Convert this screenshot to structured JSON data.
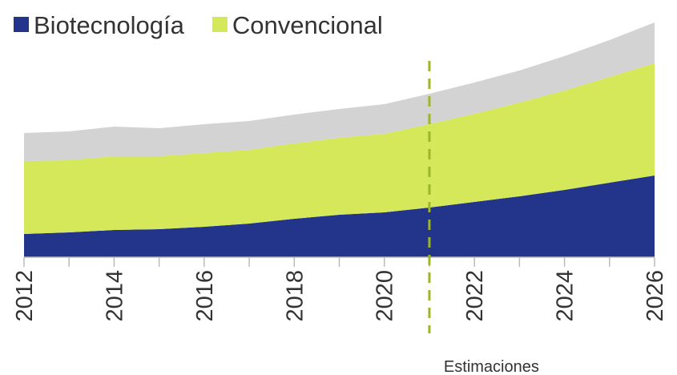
{
  "chart_data": {
    "type": "stacked-area",
    "x": [
      2012,
      2013,
      2014,
      2015,
      2016,
      2017,
      2018,
      2019,
      2020,
      2021,
      2022,
      2023,
      2024,
      2025,
      2026
    ],
    "series": [
      {
        "name": "Biotecnología",
        "color": "#22358a",
        "values": [
          29,
          31,
          34,
          35,
          38,
          42,
          48,
          53,
          56,
          62,
          69,
          76,
          84,
          93,
          102
        ]
      },
      {
        "name": "Convencional",
        "color": "#d4e85a",
        "values": [
          91,
          90,
          92,
          91,
          92,
          92,
          94,
          96,
          98,
          104,
          110,
          117,
          124,
          132,
          140
        ]
      },
      {
        "color": "#d3d3d3",
        "values": [
          35,
          36,
          37,
          35,
          36,
          36,
          36,
          36,
          37,
          38,
          39,
          40,
          43,
          46,
          51
        ]
      }
    ],
    "xlim": [
      2012,
      2026
    ],
    "xticks": [
      2012,
      2014,
      2016,
      2018,
      2020,
      2022,
      2024,
      2026
    ],
    "xminorticks": [
      2013,
      2015,
      2017,
      2019,
      2021,
      2023,
      2025
    ],
    "ylim": [
      0,
      300
    ],
    "divider": 2021,
    "divider_color": "#9bb62a",
    "annotation": "Estimaciones",
    "legend": "top-left"
  }
}
